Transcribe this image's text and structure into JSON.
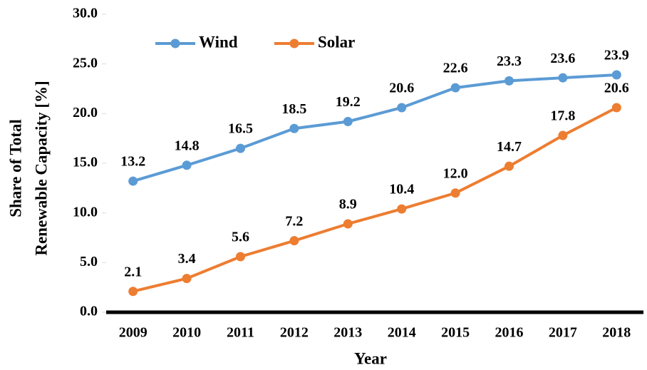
{
  "chart_data": {
    "type": "line",
    "ylabel": [
      "Share of Total",
      "Renewable Capacity [%]"
    ],
    "xlabel": "Year",
    "categories": [
      "2009",
      "2010",
      "2011",
      "2012",
      "2013",
      "2014",
      "2015",
      "2016",
      "2017",
      "2018"
    ],
    "series": [
      {
        "name": "Wind",
        "color": "#5b9bd5",
        "values": [
          13.2,
          14.8,
          16.5,
          18.5,
          19.2,
          20.6,
          22.6,
          23.3,
          23.6,
          23.9
        ],
        "value_labels": [
          "13.2",
          "14.8",
          "16.5",
          "18.5",
          "19.2",
          "20.6",
          "22.6",
          "23.3",
          "23.6",
          "23.9"
        ]
      },
      {
        "name": "Solar",
        "color": "#ed7d31",
        "values": [
          2.1,
          3.4,
          5.6,
          7.2,
          8.9,
          10.4,
          12.0,
          14.7,
          17.8,
          20.6
        ],
        "value_labels": [
          "2.1",
          "3.4",
          "5.6",
          "7.2",
          "8.9",
          "10.4",
          "12.0",
          "14.7",
          "17.8",
          "20.6"
        ]
      }
    ],
    "ylim": [
      0,
      30
    ],
    "yticks": [
      {
        "value": 0,
        "label": "0.0"
      },
      {
        "value": 5,
        "label": "5.0"
      },
      {
        "value": 10,
        "label": "10.0"
      },
      {
        "value": 15,
        "label": "15.0"
      },
      {
        "value": 20,
        "label": "20.0"
      },
      {
        "value": 25,
        "label": "25.0"
      },
      {
        "value": 30,
        "label": "30.0"
      }
    ],
    "grid": false,
    "legend": "top-left"
  }
}
